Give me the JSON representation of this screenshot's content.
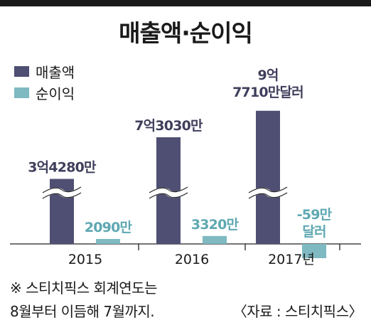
{
  "title": "매출액·순이익",
  "legend": [
    {
      "label": "매출액",
      "color": "#4f4f73"
    },
    {
      "label": "순이익",
      "color": "#7fb9c1"
    }
  ],
  "chart_data": {
    "type": "bar",
    "title": "매출액·순이익",
    "categories": [
      "2015",
      "2016",
      "2017년"
    ],
    "series": [
      {
        "name": "매출액",
        "values": [
          342800000,
          730300000,
          977100000
        ],
        "labels": [
          "3억4280만",
          "7억3030만",
          "9억\n7710만달러"
        ],
        "color": "#4f4f73"
      },
      {
        "name": "순이익",
        "values": [
          20900000,
          33200000,
          -590000
        ],
        "labels": [
          "2090만",
          "3320만",
          "-59만\n달러"
        ],
        "color": "#7fb9c1"
      }
    ],
    "axis_break": true,
    "grid": false
  },
  "footnote": [
    "※ 스티치픽스 회계연도는",
    "8월부터 이듬해 7월까지."
  ],
  "source": "〈자료 : 스티치픽스〉"
}
